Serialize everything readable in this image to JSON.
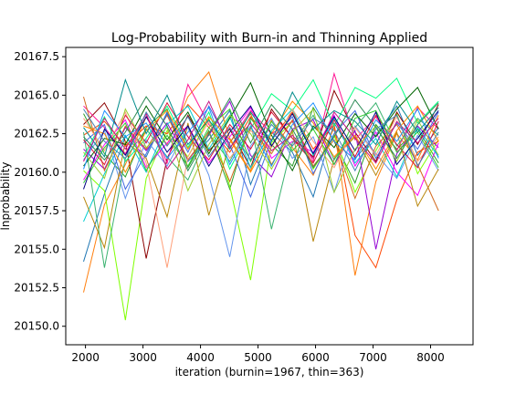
{
  "chart_data": {
    "type": "line",
    "title": "Log-Probability with Burn-in and Thinning Applied",
    "xlabel": "iteration (burnin=1967, thin=363)",
    "ylabel": "lnprobability",
    "xlim": [
      1657,
      8738
    ],
    "ylim": [
      20148.8,
      20168.1
    ],
    "x_ticks": [
      2000,
      3000,
      4000,
      5000,
      6000,
      7000,
      8000
    ],
    "x_tick_labels": [
      "2000",
      "3000",
      "4000",
      "5000",
      "6000",
      "7000",
      "8000"
    ],
    "y_ticks": [
      20150.0,
      20152.5,
      20155.0,
      20157.5,
      20160.0,
      20162.5,
      20165.0,
      20167.5
    ],
    "y_tick_labels": [
      "20150.0",
      "20152.5",
      "20155.0",
      "20157.5",
      "20160.0",
      "20162.5",
      "20165.0",
      "20167.5"
    ],
    "x": [
      1967,
      2330,
      2693,
      3056,
      3419,
      3782,
      4145,
      4508,
      4871,
      5234,
      5597,
      5960,
      6323,
      6686,
      7049,
      7412,
      7775,
      8138
    ],
    "legend": "none",
    "grid": false,
    "series": [
      {
        "color": "#2ca02c",
        "values": [
          20163.8,
          20161.2,
          20159.7,
          20162.9,
          20164.1,
          20160.3,
          20162.7,
          20158.9,
          20163.5,
          20161.8,
          20160.4,
          20164.2,
          20162.0,
          20159.3,
          20163.1,
          20161.5,
          20162.8,
          20160.6
        ]
      },
      {
        "color": "#1f77b4",
        "values": [
          20154.2,
          20158.6,
          20162.3,
          20161.0,
          20163.9,
          20160.7,
          20162.1,
          20164.0,
          20159.2,
          20162.6,
          20161.3,
          20158.4,
          20163.2,
          20160.9,
          20162.4,
          20164.3,
          20161.1,
          20162.9
        ]
      },
      {
        "color": "#ff7f0e",
        "values": [
          20152.2,
          20157.9,
          20160.5,
          20163.6,
          20161.8,
          20164.9,
          20166.5,
          20162.2,
          20160.1,
          20163.4,
          20161.6,
          20159.8,
          20162.9,
          20153.3,
          20159.4,
          20162.5,
          20160.8,
          20163.7
        ]
      },
      {
        "color": "#7fff00",
        "values": [
          20160.1,
          20158.8,
          20150.4,
          20159.6,
          20162.7,
          20161.0,
          20163.5,
          20159.1,
          20153.0,
          20161.9,
          20163.3,
          20160.2,
          20162.4,
          20158.7,
          20161.4,
          20163.8,
          20159.9,
          20162.1
        ]
      },
      {
        "color": "#8b0000",
        "values": [
          20163.1,
          20164.5,
          20162.0,
          20154.4,
          20160.9,
          20163.7,
          20161.4,
          20162.8,
          20160.3,
          20164.1,
          20162.2,
          20161.0,
          20165.3,
          20162.6,
          20160.7,
          20163.9,
          20161.8,
          20164.4
        ]
      },
      {
        "color": "#ff4500",
        "values": [
          20162.4,
          20163.3,
          20161.7,
          20163.0,
          20162.5,
          20164.4,
          20162.9,
          20161.3,
          20163.6,
          20162.1,
          20163.9,
          20161.5,
          20163.1,
          20155.9,
          20153.8,
          20158.2,
          20161.3,
          20162.0
        ]
      },
      {
        "color": "#9400d3",
        "values": [
          20161.5,
          20160.2,
          20162.9,
          20161.4,
          20163.2,
          20160.8,
          20162.4,
          20164.6,
          20161.1,
          20159.7,
          20162.8,
          20163.4,
          20160.5,
          20162.7,
          20155.0,
          20161.2,
          20163.0,
          20161.6
        ]
      },
      {
        "color": "#ff00ff",
        "values": [
          20159.5,
          20161.8,
          20163.4,
          20160.3,
          20161.9,
          20163.0,
          20160.6,
          20162.3,
          20164.2,
          20160.9,
          20162.0,
          20161.3,
          20163.7,
          20160.4,
          20162.6,
          20160.0,
          20158.5,
          20161.9
        ]
      },
      {
        "color": "#6495ed",
        "values": [
          20160.8,
          20162.7,
          20158.3,
          20162.1,
          20160.4,
          20162.9,
          20159.8,
          20154.5,
          20161.7,
          20163.5,
          20160.9,
          20162.3,
          20158.7,
          20163.0,
          20161.2,
          20159.6,
          20162.4,
          20160.1
        ]
      },
      {
        "color": "#ff1493",
        "values": [
          20164.3,
          20162.9,
          20161.2,
          20163.8,
          20160.6,
          20165.7,
          20163.1,
          20161.9,
          20164.0,
          20162.5,
          20163.3,
          20160.7,
          20166.4,
          20162.1,
          20163.6,
          20161.4,
          20164.2,
          20162.8
        ]
      },
      {
        "color": "#00ff7f",
        "values": [
          20161.0,
          20163.6,
          20160.7,
          20162.2,
          20164.3,
          20161.6,
          20163.9,
          20160.2,
          20162.8,
          20165.1,
          20164.0,
          20166.0,
          20163.0,
          20165.5,
          20164.8,
          20166.1,
          20163.2,
          20164.6
        ]
      },
      {
        "color": "#d2691e",
        "values": [
          20164.9,
          20160.1,
          20163.0,
          20161.5,
          20163.7,
          20160.8,
          20162.6,
          20159.4,
          20162.9,
          20161.2,
          20163.4,
          20160.4,
          20162.1,
          20158.3,
          20161.7,
          20163.1,
          20160.5,
          20157.5
        ]
      },
      {
        "color": "#00ced1",
        "values": [
          20156.8,
          20159.9,
          20162.4,
          20160.0,
          20163.1,
          20164.3,
          20161.5,
          20163.6,
          20160.3,
          20162.7,
          20164.1,
          20161.1,
          20163.5,
          20160.6,
          20162.2,
          20159.7,
          20162.9,
          20161.0
        ]
      },
      {
        "color": "#b8860b",
        "values": [
          20158.4,
          20155.1,
          20162.0,
          20160.9,
          20157.1,
          20163.2,
          20157.2,
          20161.9,
          20163.8,
          20160.5,
          20162.7,
          20155.5,
          20160.9,
          20162.3,
          20159.8,
          20162.6,
          20157.8,
          20160.2
        ]
      },
      {
        "color": "#3cb371",
        "values": [
          20162.6,
          20153.8,
          20160.9,
          20162.8,
          20161.0,
          20159.5,
          20162.5,
          20160.7,
          20163.3,
          20156.3,
          20161.9,
          20163.7,
          20160.8,
          20162.9,
          20164.5,
          20161.7,
          20163.5,
          20162.4
        ]
      },
      {
        "color": "#4169e1",
        "values": [
          20161.9,
          20163.1,
          20158.9,
          20161.2,
          20163.8,
          20161.3,
          20164.3,
          20161.8,
          20158.4,
          20162.1,
          20163.6,
          20159.9,
          20162.5,
          20164.0,
          20160.9,
          20163.2,
          20161.5,
          20163.9
        ]
      },
      {
        "color": "#ffa07a",
        "values": [
          20163.5,
          20161.4,
          20163.9,
          20160.6,
          20153.8,
          20161.0,
          20163.3,
          20160.9,
          20162.7,
          20161.6,
          20164.1,
          20162.0,
          20160.3,
          20162.9,
          20161.1,
          20163.6,
          20160.7,
          20162.3
        ]
      },
      {
        "color": "#006400",
        "values": [
          20160.4,
          20162.2,
          20161.8,
          20164.3,
          20162.1,
          20163.9,
          20161.2,
          20163.5,
          20165.8,
          20162.4,
          20160.1,
          20163.0,
          20161.6,
          20163.8,
          20162.3,
          20164.1,
          20165.5,
          20162.8
        ]
      },
      {
        "color": "#dc143c",
        "values": [
          20162.1,
          20160.5,
          20163.7,
          20161.9,
          20164.5,
          20162.3,
          20160.8,
          20163.1,
          20161.5,
          20163.9,
          20162.2,
          20160.6,
          20163.4,
          20161.0,
          20163.7,
          20161.8,
          20160.3,
          20163.3
        ]
      },
      {
        "color": "#1e90ff",
        "values": [
          20160.2,
          20164.0,
          20162.3,
          20163.2,
          20160.9,
          20162.6,
          20164.2,
          20160.5,
          20163.0,
          20160.4,
          20163.1,
          20164.5,
          20162.0,
          20160.8,
          20163.4,
          20162.0,
          20164.1,
          20160.9
        ]
      },
      {
        "color": "#32cd32",
        "values": [
          20159.3,
          20161.6,
          20163.2,
          20160.1,
          20162.4,
          20160.4,
          20162.9,
          20164.1,
          20160.7,
          20163.3,
          20161.4,
          20162.8,
          20160.5,
          20163.5,
          20164.0,
          20161.3,
          20162.6,
          20160.3
        ]
      },
      {
        "color": "#ff8c00",
        "values": [
          20163.0,
          20162.5,
          20160.0,
          20162.7,
          20164.0,
          20161.5,
          20163.6,
          20162.1,
          20160.0,
          20162.5,
          20164.6,
          20163.2,
          20161.0,
          20162.4,
          20160.2,
          20162.7,
          20164.3,
          20162.0
        ]
      },
      {
        "color": "#000080",
        "values": [
          20158.9,
          20162.8,
          20161.1,
          20163.6,
          20161.3,
          20163.0,
          20160.4,
          20162.6,
          20164.3,
          20161.7,
          20163.8,
          20161.2,
          20163.6,
          20161.4,
          20163.9,
          20160.5,
          20162.2,
          20164.0
        ]
      },
      {
        "color": "#9acd32",
        "values": [
          20161.3,
          20159.6,
          20164.1,
          20161.6,
          20162.9,
          20158.8,
          20161.8,
          20163.7,
          20162.5,
          20160.2,
          20162.6,
          20164.1,
          20158.7,
          20161.5,
          20163.0,
          20160.7,
          20163.4,
          20161.1
        ]
      },
      {
        "color": "#008b8b",
        "values": [
          20162.9,
          20161.0,
          20166.0,
          20162.5,
          20165.0,
          20161.8,
          20163.4,
          20161.5,
          20163.9,
          20162.0,
          20165.2,
          20162.8,
          20164.0,
          20163.3,
          20161.8,
          20164.6,
          20162.6,
          20164.2
        ]
      },
      {
        "color": "#c71585",
        "values": [
          20160.7,
          20163.5,
          20161.5,
          20163.8,
          20160.2,
          20162.1,
          20164.6,
          20161.6,
          20163.2,
          20161.4,
          20162.4,
          20160.9,
          20163.9,
          20162.2,
          20160.6,
          20163.3,
          20161.9,
          20163.5
        ]
      },
      {
        "color": "#2e8b57",
        "values": [
          20162.3,
          20160.8,
          20162.6,
          20164.9,
          20163.0,
          20160.1,
          20162.5,
          20164.8,
          20161.9,
          20164.4,
          20162.8,
          20160.3,
          20162.3,
          20164.7,
          20162.9,
          20160.9,
          20163.1,
          20164.5
        ]
      },
      {
        "color": "#4682b4",
        "values": [
          20164.1,
          20162.0,
          20160.9,
          20163.9,
          20161.7,
          20163.6,
          20161.0,
          20162.9,
          20160.8,
          20163.1,
          20161.7,
          20163.5,
          20162.7,
          20160.1,
          20162.8,
          20163.7,
          20160.4,
          20162.6
        ]
      }
    ]
  }
}
